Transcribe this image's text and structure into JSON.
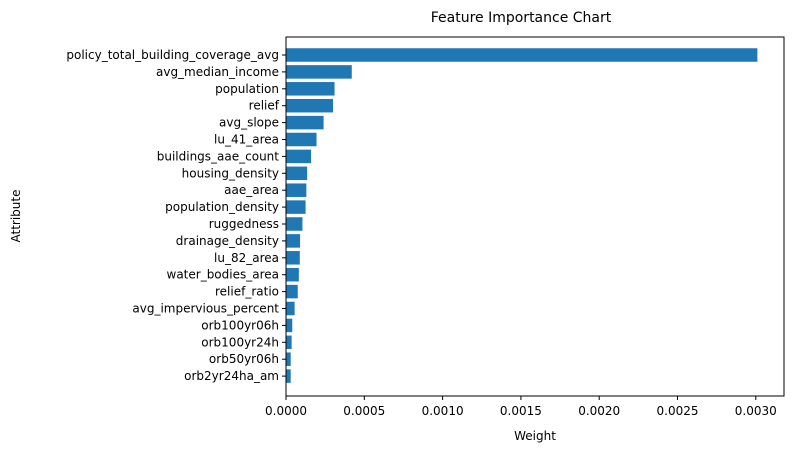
{
  "chart_data": {
    "type": "bar",
    "orientation": "horizontal",
    "title": "Feature Importance Chart",
    "xlabel": "Weight",
    "ylabel": "Attribute",
    "xlim": [
      0,
      0.00318
    ],
    "xticks": [
      "0.0000",
      "0.0005",
      "0.0010",
      "0.0015",
      "0.0020",
      "0.0025",
      "0.0030"
    ],
    "xtick_values": [
      0,
      0.0005,
      0.001,
      0.0015,
      0.002,
      0.0025,
      0.003
    ],
    "grid": false,
    "bar_color": "#1f77b4",
    "categories": [
      "policy_total_building_coverage_avg",
      "avg_median_income",
      "population",
      "relief",
      "avg_slope",
      "lu_41_area",
      "buildings_aae_count",
      "housing_density",
      "aae_area",
      "population_density",
      "ruggedness",
      "drainage_density",
      "lu_82_area",
      "water_bodies_area",
      "relief_ratio",
      "avg_impervious_percent",
      "orb100yr06h",
      "orb100yr24h",
      "orb50yr06h",
      "orb2yr24ha_am"
    ],
    "values": [
      0.00301,
      0.00042,
      0.00031,
      0.0003,
      0.00024,
      0.000195,
      0.00016,
      0.000135,
      0.00013,
      0.000125,
      0.000105,
      9e-05,
      8.8e-05,
      8.2e-05,
      7.5e-05,
      5.5e-05,
      4e-05,
      3.6e-05,
      3e-05,
      3e-05
    ]
  }
}
